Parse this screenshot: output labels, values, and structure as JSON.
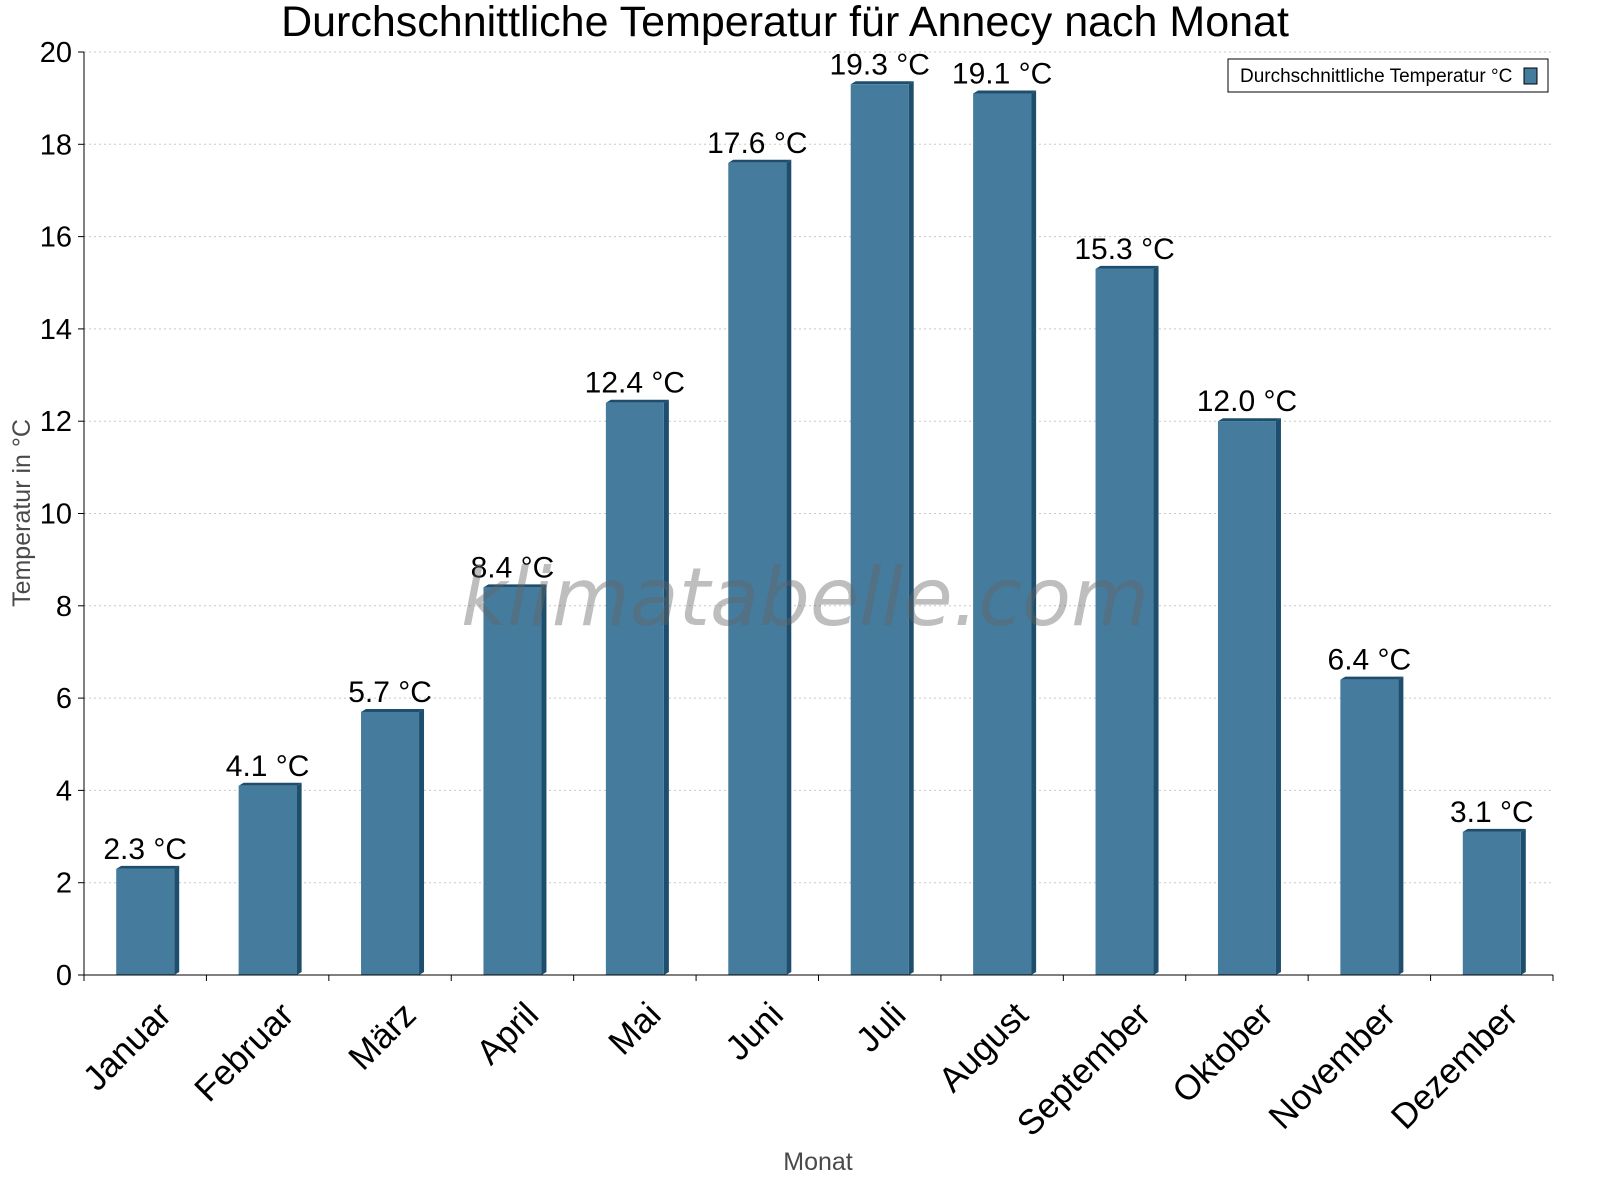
{
  "chart_data": {
    "type": "bar",
    "title": "Durchschnittliche Temperatur für Annecy nach Monat",
    "xlabel": "Monat",
    "ylabel": "Temperatur in °C",
    "categories": [
      "Januar",
      "Februar",
      "März",
      "April",
      "Mai",
      "Juni",
      "Juli",
      "August",
      "September",
      "Oktober",
      "November",
      "Dezember"
    ],
    "series": [
      {
        "name": "Durchschnittliche Temperatur °C",
        "values": [
          2.3,
          4.1,
          5.7,
          8.4,
          12.4,
          17.6,
          19.3,
          19.1,
          15.3,
          12.0,
          6.4,
          3.1
        ],
        "labels": [
          "2.3 °C",
          "4.1 °C",
          "5.7 °C",
          "8.4 °C",
          "12.4 °C",
          "17.6 °C",
          "19.3 °C",
          "19.1 °C",
          "15.3 °C",
          "12.0 °C",
          "6.4 °C",
          "3.1 °C"
        ],
        "color": "#457b9d",
        "shade_color": "#1d4e6e"
      }
    ],
    "yticks": [
      "0",
      "2",
      "4",
      "6",
      "8",
      "10",
      "12",
      "14",
      "16",
      "18",
      "20"
    ],
    "ylim": [
      0,
      20
    ],
    "grid": true,
    "legend_position": "top-right",
    "watermark": "klimatabelle.com"
  }
}
